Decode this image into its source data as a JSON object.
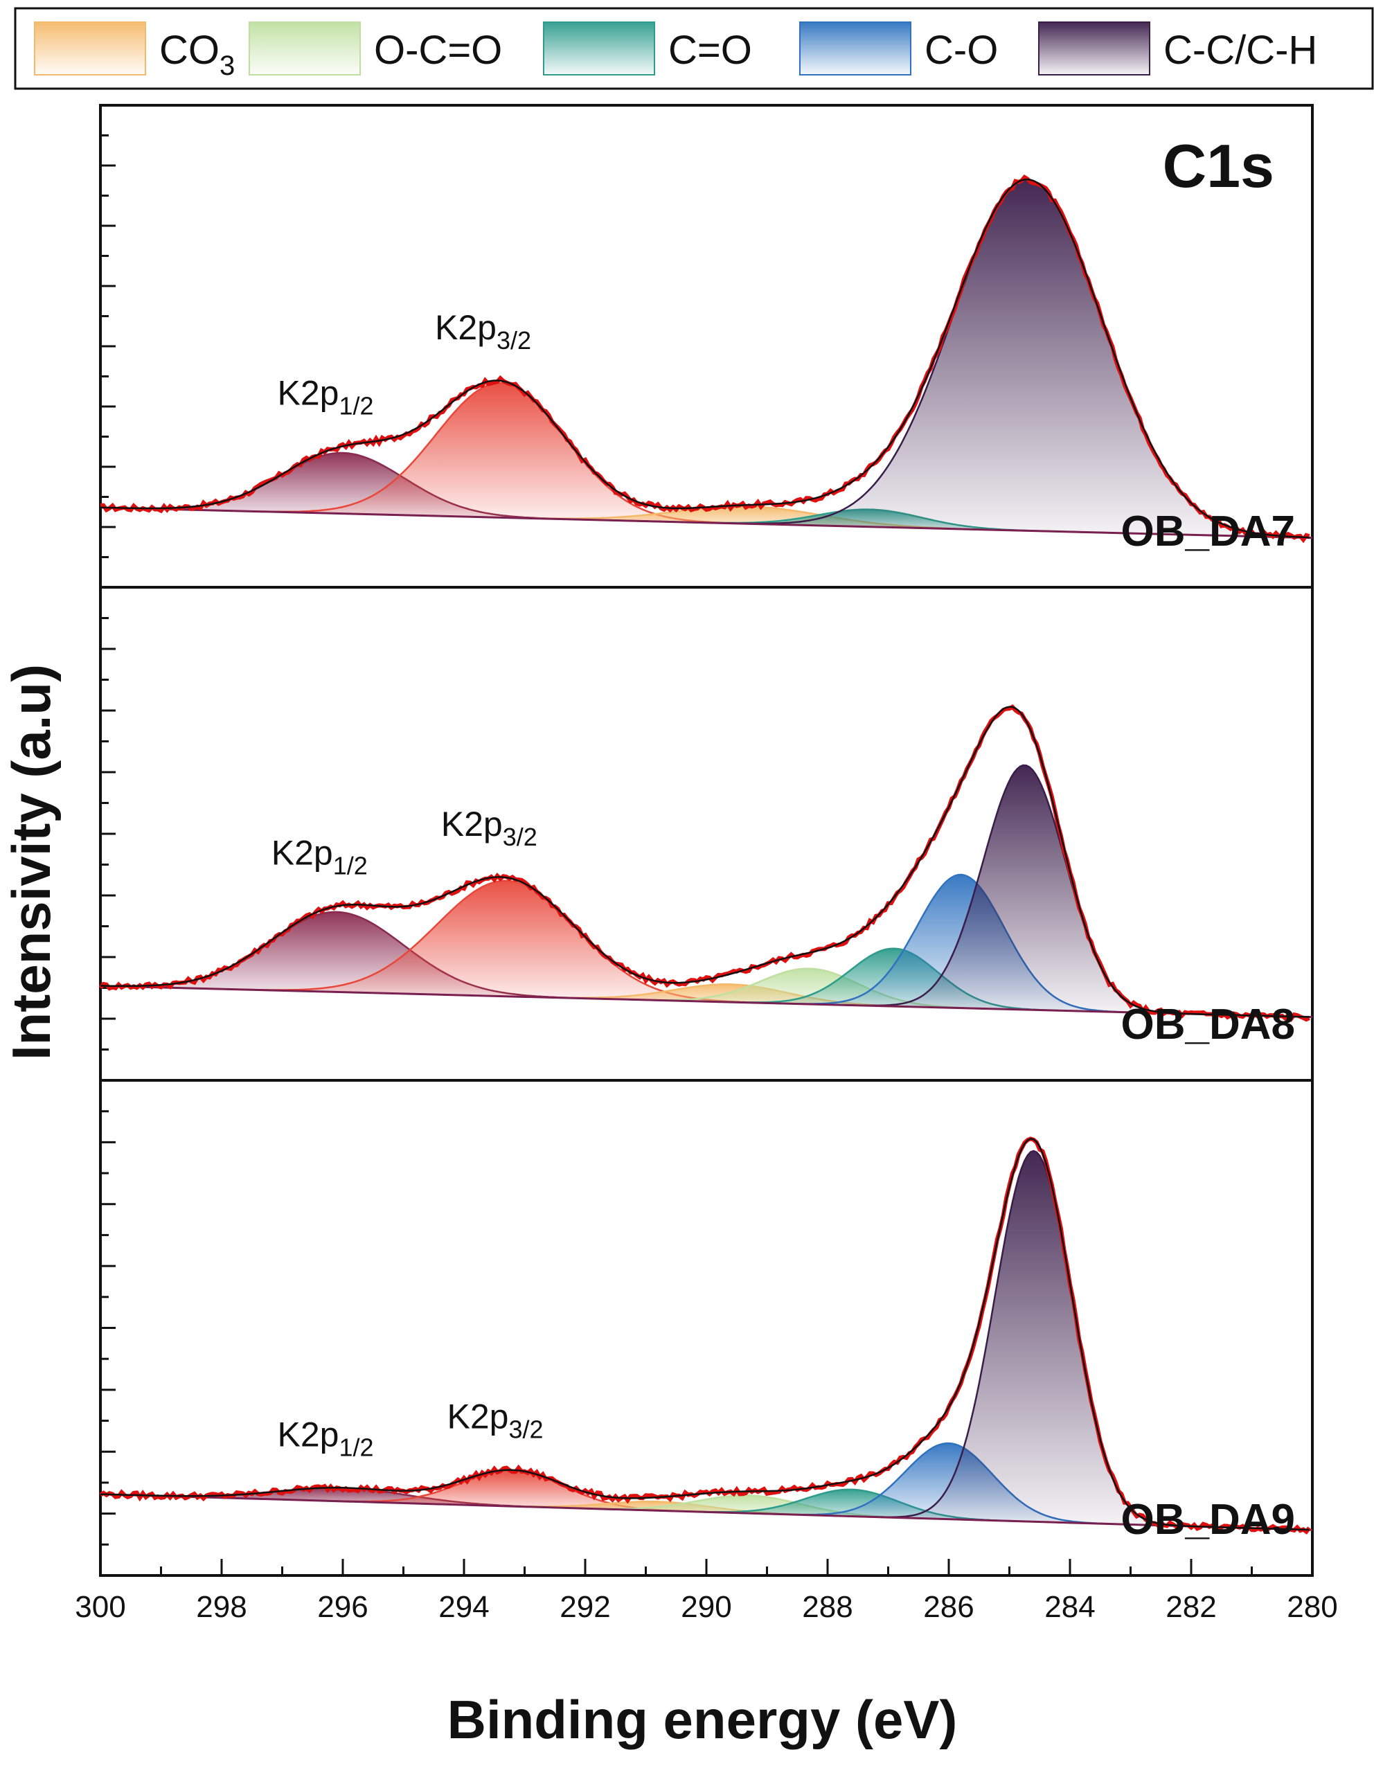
{
  "chart_data": {
    "type": "line",
    "title": "C1s",
    "xlabel": "Binding energy (eV)",
    "ylabel": "Intensivity (a.u)",
    "xlim": [
      300,
      280
    ],
    "x_ticks": [
      "300",
      "298",
      "296",
      "294",
      "292",
      "290",
      "288",
      "286",
      "284",
      "282",
      "280"
    ],
    "legend": [
      {
        "label": "CO",
        "sub": "3",
        "color": "#f5b96a"
      },
      {
        "label": "O-C=O",
        "sub": "",
        "color": "#bfe0a0"
      },
      {
        "label": "C=O",
        "sub": "",
        "color": "#2e9c8c"
      },
      {
        "label": "C-O",
        "sub": "",
        "color": "#2f73c0"
      },
      {
        "label": "C-C/C-H",
        "sub": "",
        "color": "#3a1d4a"
      }
    ],
    "panels": [
      {
        "sample": "OB_DA7",
        "ylim": [
          0,
          1
        ],
        "baseline": {
          "start": 0.12,
          "end": 0.05
        },
        "components": [
          {
            "name": "K2p1/2",
            "center": 296.0,
            "amplitude": 0.14,
            "fwhm": 2.4,
            "color": "#8a2a4f"
          },
          {
            "name": "K2p3/2",
            "center": 293.4,
            "amplitude": 0.31,
            "fwhm": 2.5,
            "color": "#e8473a"
          },
          {
            "name": "CO3",
            "center": 289.3,
            "amplitude": 0.04,
            "fwhm": 2.8,
            "color": "#f5b96a"
          },
          {
            "name": "C=O",
            "center": 287.3,
            "amplitude": 0.04,
            "fwhm": 2.0,
            "color": "#2e9c8c"
          },
          {
            "name": "C-C/C-H",
            "center": 284.7,
            "amplitude": 0.81,
            "fwhm": 2.9,
            "color": "#3a1d4a"
          }
        ],
        "peak_labels": [
          {
            "text": "K2p",
            "sub": "1/2",
            "x": 296.0
          },
          {
            "text": "K2p",
            "sub": "3/2",
            "x": 293.4
          }
        ]
      },
      {
        "sample": "OB_DA8",
        "ylim": [
          0,
          1
        ],
        "baseline": {
          "start": 0.15,
          "end": 0.08
        },
        "components": [
          {
            "name": "K2p1/2",
            "center": 296.1,
            "amplitude": 0.18,
            "fwhm": 2.6,
            "color": "#8a2a4f"
          },
          {
            "name": "K2p3/2",
            "center": 293.3,
            "amplitude": 0.26,
            "fwhm": 2.7,
            "color": "#e8473a"
          },
          {
            "name": "CO3",
            "center": 289.6,
            "amplitude": 0.04,
            "fwhm": 2.2,
            "color": "#f5b96a"
          },
          {
            "name": "O-C=O",
            "center": 288.3,
            "amplitude": 0.08,
            "fwhm": 1.9,
            "color": "#bfe0a0"
          },
          {
            "name": "C=O",
            "center": 286.9,
            "amplitude": 0.13,
            "fwhm": 1.7,
            "color": "#2e9c8c"
          },
          {
            "name": "C-O",
            "center": 285.8,
            "amplitude": 0.3,
            "fwhm": 1.7,
            "color": "#2f73c0"
          },
          {
            "name": "C-C/C-H",
            "center": 284.75,
            "amplitude": 0.55,
            "fwhm": 1.6,
            "color": "#3a1d4a"
          }
        ],
        "peak_labels": [
          {
            "text": "K2p",
            "sub": "1/2",
            "x": 296.1
          },
          {
            "text": "K2p",
            "sub": "3/2",
            "x": 293.3
          }
        ]
      },
      {
        "sample": "OB_DA9",
        "ylim": [
          0,
          1
        ],
        "baseline": {
          "start": 0.12,
          "end": 0.04
        },
        "components": [
          {
            "name": "K2p1/2",
            "center": 296.0,
            "amplitude": 0.03,
            "fwhm": 2.5,
            "color": "#8a2a4f"
          },
          {
            "name": "K2p3/2",
            "center": 293.2,
            "amplitude": 0.08,
            "fwhm": 2.0,
            "color": "#e8473a"
          },
          {
            "name": "CO3",
            "center": 290.8,
            "amplitude": 0.02,
            "fwhm": 2.0,
            "color": "#f5b96a"
          },
          {
            "name": "O-C=O",
            "center": 289.3,
            "amplitude": 0.04,
            "fwhm": 2.0,
            "color": "#bfe0a0"
          },
          {
            "name": "C=O",
            "center": 287.6,
            "amplitude": 0.06,
            "fwhm": 1.8,
            "color": "#2e9c8c"
          },
          {
            "name": "C-O",
            "center": 286.0,
            "amplitude": 0.17,
            "fwhm": 1.7,
            "color": "#2f73c0"
          },
          {
            "name": "C-C/C-H",
            "center": 284.6,
            "amplitude": 0.83,
            "fwhm": 1.5,
            "color": "#3a1d4a"
          }
        ],
        "peak_labels": [
          {
            "text": "K2p",
            "sub": "1/2",
            "x": 296.0
          },
          {
            "text": "K2p",
            "sub": "3/2",
            "x": 293.2
          }
        ]
      }
    ]
  }
}
